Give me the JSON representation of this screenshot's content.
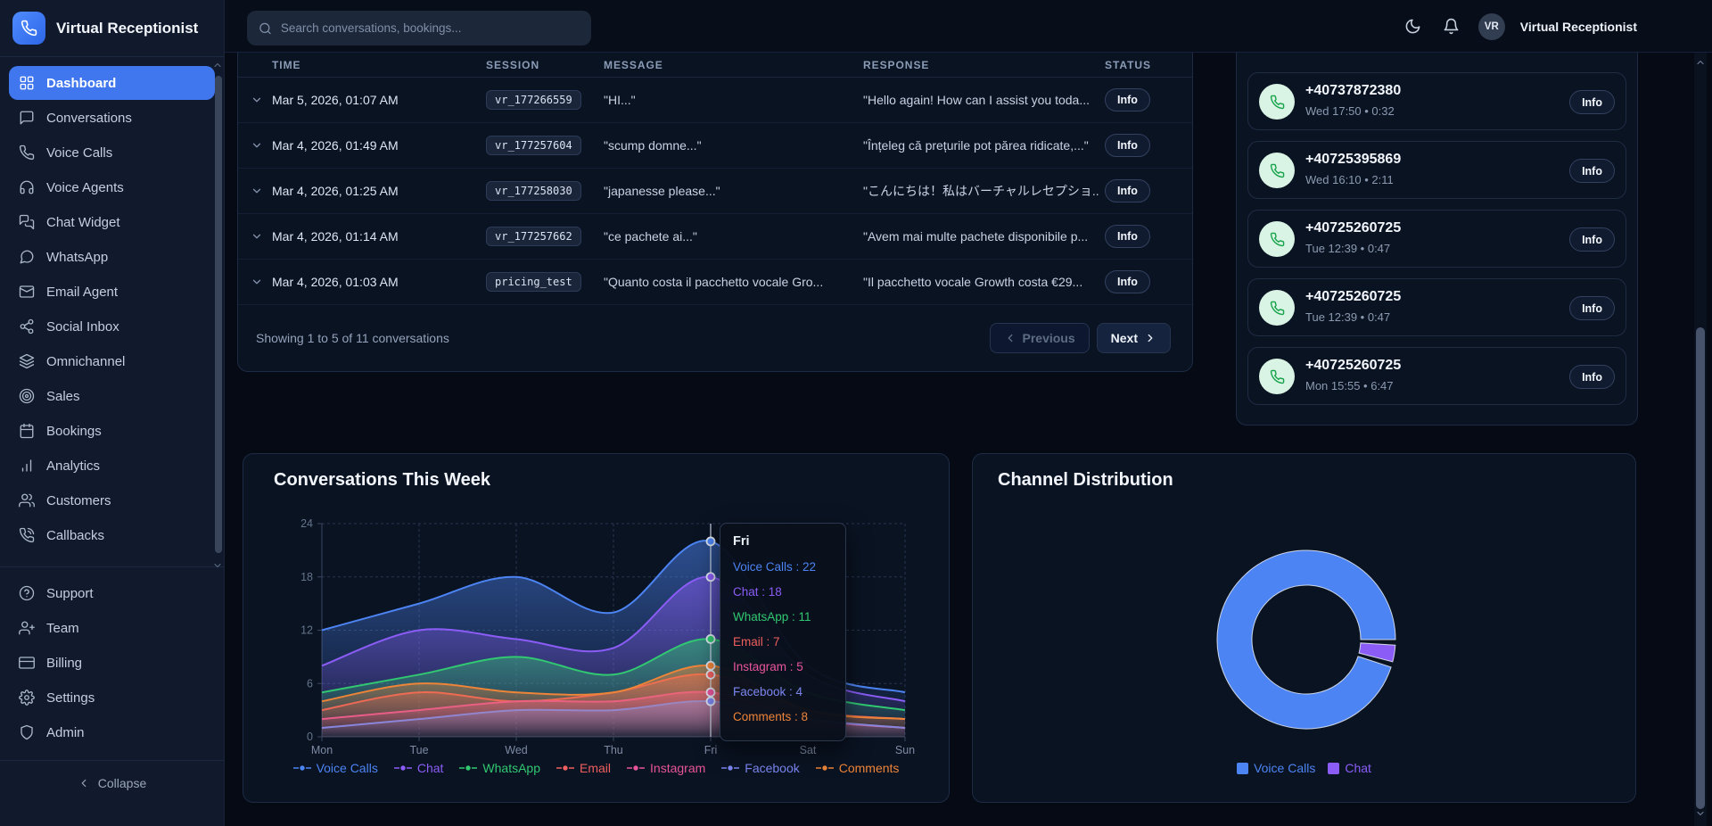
{
  "app": {
    "brand": "Virtual Receptionist"
  },
  "topbar": {
    "search_placeholder": "Search conversations, bookings...",
    "avatar_initials": "VR",
    "user_name": "Virtual Receptionist"
  },
  "sidebar": {
    "items": [
      {
        "label": "Dashboard",
        "icon": "grid-icon",
        "active": true
      },
      {
        "label": "Conversations",
        "icon": "chat-bubble-icon"
      },
      {
        "label": "Voice Calls",
        "icon": "phone-icon"
      },
      {
        "label": "Voice Agents",
        "icon": "headphones-icon"
      },
      {
        "label": "Chat Widget",
        "icon": "chat-widget-icon"
      },
      {
        "label": "WhatsApp",
        "icon": "message-circle-icon"
      },
      {
        "label": "Email Agent",
        "icon": "mail-icon"
      },
      {
        "label": "Social Inbox",
        "icon": "share-icon"
      },
      {
        "label": "Omnichannel",
        "icon": "layers-icon"
      },
      {
        "label": "Sales",
        "icon": "target-icon"
      },
      {
        "label": "Bookings",
        "icon": "calendar-icon"
      },
      {
        "label": "Analytics",
        "icon": "bar-chart-icon"
      },
      {
        "label": "Customers",
        "icon": "users-icon"
      },
      {
        "label": "Callbacks",
        "icon": "phone-callback-icon"
      }
    ],
    "footer_items": [
      {
        "label": "Support",
        "icon": "help-circle-icon"
      },
      {
        "label": "Team",
        "icon": "user-plus-icon"
      },
      {
        "label": "Billing",
        "icon": "credit-card-icon"
      },
      {
        "label": "Settings",
        "icon": "gear-icon"
      },
      {
        "label": "Admin",
        "icon": "shield-icon"
      }
    ],
    "collapse_label": "Collapse"
  },
  "table": {
    "columns": [
      "TIME",
      "SESSION",
      "MESSAGE",
      "RESPONSE",
      "STATUS"
    ],
    "rows": [
      {
        "time": "Mar 5, 2026, 01:07 AM",
        "session": "vr_177266559",
        "message": "\"HI...\"",
        "response": "\"Hello again! How can I assist you toda...",
        "status": "Info"
      },
      {
        "time": "Mar 4, 2026, 01:49 AM",
        "session": "vr_177257604",
        "message": "\"scump domne...\"",
        "response": "\"Înțeleg că prețurile pot părea ridicate,...\"",
        "status": "Info"
      },
      {
        "time": "Mar 4, 2026, 01:25 AM",
        "session": "vr_177258030",
        "message": "\"japanesse please...\"",
        "response": "\"こんにちは！私はバーチャルレセプショ...",
        "status": "Info"
      },
      {
        "time": "Mar 4, 2026, 01:14 AM",
        "session": "vr_177257662",
        "message": "\"ce pachete ai...\"",
        "response": "\"Avem mai multe pachete disponibile p...",
        "status": "Info"
      },
      {
        "time": "Mar 4, 2026, 01:03 AM",
        "session": "pricing_test",
        "message": "\"Quanto costa il pacchetto vocale Gro...",
        "response": "\"Il pacchetto vocale Growth costa €29...",
        "status": "Info"
      }
    ],
    "footer": {
      "summary": "Showing 1 to 5 of 11 conversations",
      "prev_label": "Previous",
      "next_label": "Next"
    }
  },
  "calls": {
    "items": [
      {
        "number": "+40737872380",
        "meta": "Wed 17:50 • 0:32",
        "action": "Info"
      },
      {
        "number": "+40725395869",
        "meta": "Wed 16:10 • 2:11",
        "action": "Info"
      },
      {
        "number": "+40725260725",
        "meta": "Tue 12:39 • 0:47",
        "action": "Info"
      },
      {
        "number": "+40725260725",
        "meta": "Tue 12:39 • 0:47",
        "action": "Info"
      },
      {
        "number": "+40725260725",
        "meta": "Mon 15:55 • 6:47",
        "action": "Info"
      }
    ]
  },
  "chart_data": [
    {
      "type": "area",
      "title": "Conversations This Week",
      "x": [
        "Mon",
        "Tue",
        "Wed",
        "Thu",
        "Fri",
        "Sat",
        "Sun"
      ],
      "y_ticks": [
        0,
        6,
        12,
        18,
        24
      ],
      "ylim": [
        0,
        24
      ],
      "grid": true,
      "legend_position": "bottom",
      "series": [
        {
          "name": "Voice Calls",
          "color": "#4c84f3",
          "values": [
            12,
            15,
            18,
            14,
            22,
            8,
            5
          ]
        },
        {
          "name": "Chat",
          "color": "#8b5cf6",
          "values": [
            8,
            12,
            11,
            10,
            18,
            7,
            4
          ]
        },
        {
          "name": "WhatsApp",
          "color": "#31c871",
          "values": [
            5,
            7,
            9,
            7,
            11,
            5,
            3
          ]
        },
        {
          "name": "Email",
          "color": "#ef5f5f",
          "values": [
            3,
            5,
            4,
            5,
            7,
            3,
            2
          ]
        },
        {
          "name": "Instagram",
          "color": "#e8549b",
          "values": [
            2,
            3,
            4,
            4,
            5,
            2,
            1
          ]
        },
        {
          "name": "Facebook",
          "color": "#7c86f0",
          "values": [
            1,
            2,
            3,
            3,
            4,
            2,
            1
          ]
        },
        {
          "name": "Comments",
          "color": "#ee8438",
          "values": [
            4,
            6,
            5,
            5,
            8,
            3,
            2
          ]
        }
      ],
      "tooltip": {
        "label": "Fri",
        "x_index": 4,
        "entries": [
          {
            "name": "Voice Calls",
            "value": 22
          },
          {
            "name": "Chat",
            "value": 18
          },
          {
            "name": "WhatsApp",
            "value": 11
          },
          {
            "name": "Email",
            "value": 7
          },
          {
            "name": "Instagram",
            "value": 5
          },
          {
            "name": "Facebook",
            "value": 4
          },
          {
            "name": "Comments",
            "value": 8
          }
        ]
      }
    },
    {
      "type": "donut",
      "title": "Channel Distribution",
      "segments": [
        {
          "name": "Voice Calls",
          "color": "#4c84f3",
          "pct": 96
        },
        {
          "name": "Chat",
          "color": "#8b5cf6",
          "pct": 4
        }
      ],
      "legend": [
        "Voice Calls",
        "Chat"
      ]
    }
  ]
}
